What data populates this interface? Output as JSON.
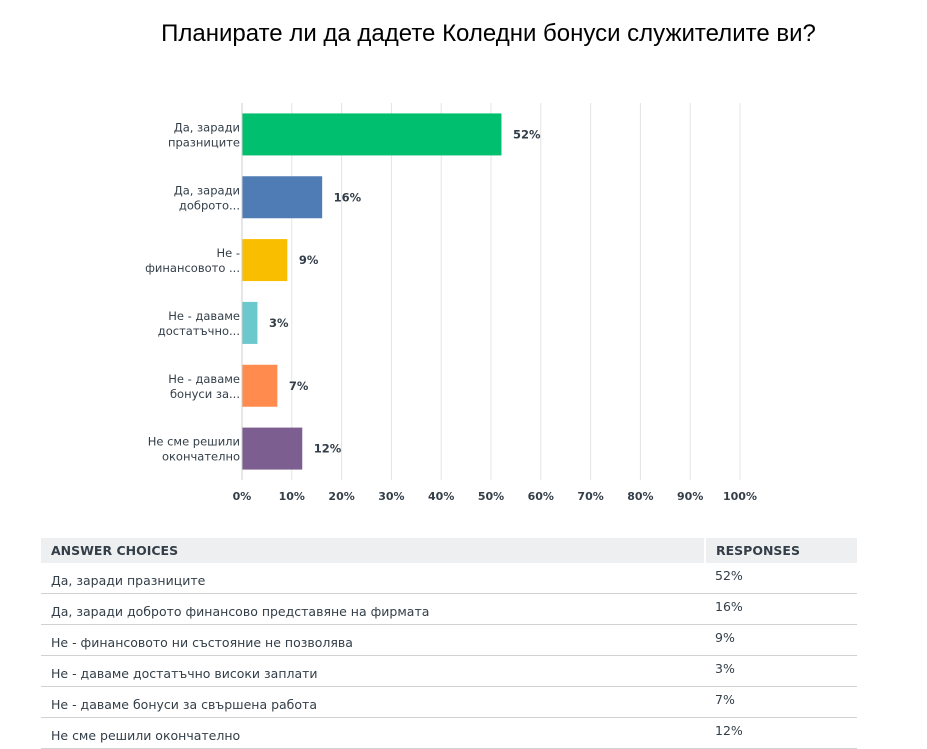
{
  "title": "Планирате ли да дадете Коледни бонуси служителите ви?",
  "chart_data": {
    "type": "bar",
    "orientation": "horizontal",
    "categories": [
      [
        "Да, заради",
        "празниците"
      ],
      [
        "Да, заради",
        "доброто..."
      ],
      [
        "Не -",
        "финансовото ..."
      ],
      [
        "Не - даваме",
        "достатъчно..."
      ],
      [
        "Не - даваме",
        "бонуси за..."
      ],
      [
        "Не сме решили",
        "окончателно"
      ]
    ],
    "values": [
      52,
      16,
      9,
      3,
      7,
      12
    ],
    "value_labels": [
      "52%",
      "16%",
      "9%",
      "3%",
      "7%",
      "12%"
    ],
    "colors": [
      "#00bf6f",
      "#507cb6",
      "#f9be00",
      "#6bc8cd",
      "#ff8b4f",
      "#7d5e90"
    ],
    "xlim": [
      0,
      100
    ],
    "ticks": [
      "0%",
      "10%",
      "20%",
      "30%",
      "40%",
      "50%",
      "60%",
      "70%",
      "80%",
      "90%",
      "100%"
    ],
    "grid": true
  },
  "table": {
    "headers": [
      "ANSWER CHOICES",
      "RESPONSES"
    ],
    "rows": [
      [
        "Да, заради празниците",
        "52%"
      ],
      [
        "Да, заради доброто финансово представяне на фирмата",
        "16%"
      ],
      [
        "Не - финансовото ни състояние не позволява",
        "9%"
      ],
      [
        "Не - даваме достатъчно високи заплати",
        "3%"
      ],
      [
        "Не - даваме бонуси за свършена работа",
        "7%"
      ],
      [
        "Не сме решили окончателно",
        "12%"
      ]
    ]
  }
}
